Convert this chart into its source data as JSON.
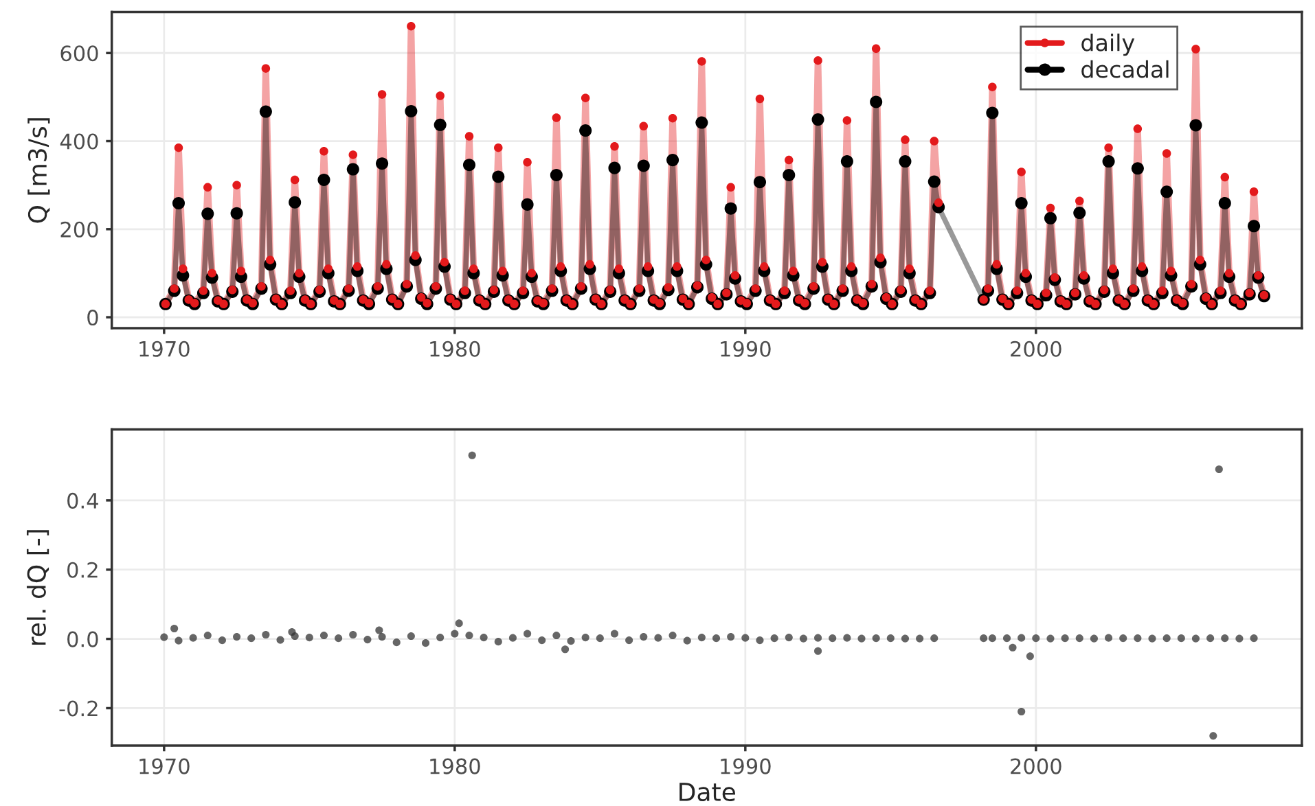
{
  "chart_data": [
    {
      "type": "line",
      "ylabel": "Q [m3/s]",
      "xlim": [
        1968.2,
        2009.15
      ],
      "xticks": [
        1970,
        1980,
        1990,
        2000
      ],
      "ylim": [
        -25,
        693
      ],
      "yticks": [
        0,
        200,
        400,
        600
      ],
      "grid": true,
      "legend": "top right",
      "marker": "circle",
      "series": [
        {
          "name": "daily",
          "color": "#e31a1c",
          "x": [
            1970.05,
            1970.35,
            1970.5,
            1970.65,
            1970.85,
            1971.05,
            1971.35,
            1971.5,
            1971.65,
            1971.85,
            1972.05,
            1972.35,
            1972.5,
            1972.65,
            1972.85,
            1973.05,
            1973.35,
            1973.5,
            1973.65,
            1973.85,
            1974.05,
            1974.35,
            1974.5,
            1974.65,
            1974.85,
            1975.05,
            1975.35,
            1975.5,
            1975.65,
            1975.85,
            1976.05,
            1976.35,
            1976.5,
            1976.65,
            1976.85,
            1977.05,
            1977.35,
            1977.5,
            1977.65,
            1977.85,
            1978.05,
            1978.35,
            1978.5,
            1978.65,
            1978.85,
            1979.05,
            1979.35,
            1979.5,
            1979.65,
            1979.85,
            1980.05,
            1980.35,
            1980.5,
            1980.65,
            1980.85,
            1981.05,
            1981.35,
            1981.5,
            1981.65,
            1981.85,
            1982.05,
            1982.35,
            1982.5,
            1982.65,
            1982.85,
            1983.05,
            1983.35,
            1983.5,
            1983.65,
            1983.85,
            1984.05,
            1984.35,
            1984.5,
            1984.65,
            1984.85,
            1985.05,
            1985.35,
            1985.5,
            1985.65,
            1985.85,
            1986.05,
            1986.35,
            1986.5,
            1986.65,
            1986.85,
            1987.05,
            1987.35,
            1987.5,
            1987.65,
            1987.85,
            1988.05,
            1988.35,
            1988.5,
            1988.65,
            1988.85,
            1989.05,
            1989.35,
            1989.5,
            1989.65,
            1989.85,
            1990.05,
            1990.35,
            1990.5,
            1990.65,
            1990.85,
            1991.05,
            1991.35,
            1991.5,
            1991.65,
            1991.85,
            1992.05,
            1992.35,
            1992.5,
            1992.65,
            1992.85,
            1993.05,
            1993.35,
            1993.5,
            1993.65,
            1993.85,
            1994.05,
            1994.35,
            1994.5,
            1994.65,
            1994.85,
            1995.05,
            1995.35,
            1995.5,
            1995.65,
            1995.85,
            1996.05,
            1996.35,
            1996.5,
            1996.65,
            1997.4,
            1998.2,
            1998.35,
            1998.5,
            1998.65,
            1998.85,
            1999.05,
            1999.35,
            1999.5,
            1999.65,
            1999.85,
            2000.05,
            2000.35,
            2000.5,
            2000.65,
            2000.85,
            2001.05,
            2001.35,
            2001.5,
            2001.65,
            2001.85,
            2002.05,
            2002.35,
            2002.5,
            2002.65,
            2002.85,
            2003.05,
            2003.35,
            2003.5,
            2003.65,
            2003.85,
            2004.05,
            2004.35,
            2004.5,
            2004.65,
            2004.85,
            2005.05,
            2005.35,
            2005.5,
            2005.65,
            2005.85,
            2006.05,
            2006.35,
            2006.5,
            2006.65,
            2006.85,
            2007.05,
            2007.35,
            2007.5,
            2007.65,
            2007.85
          ],
          "values": [
            30,
            65,
            385,
            110,
            40,
            32,
            60,
            295,
            100,
            38,
            30,
            62,
            300,
            105,
            40,
            32,
            70,
            565,
            130,
            42,
            30,
            60,
            312,
            100,
            40,
            30,
            62,
            377,
            110,
            38,
            30,
            65,
            369,
            115,
            40,
            32,
            70,
            506,
            120,
            42,
            30,
            75,
            661,
            140,
            45,
            32,
            70,
            503,
            125,
            42,
            30,
            60,
            411,
            110,
            40,
            30,
            62,
            385,
            105,
            40,
            30,
            60,
            352,
            100,
            38,
            32,
            65,
            453,
            115,
            40,
            30,
            70,
            498,
            120,
            42,
            30,
            62,
            388,
            110,
            40,
            30,
            65,
            434,
            115,
            40,
            32,
            68,
            452,
            115,
            42,
            30,
            72,
            581,
            130,
            45,
            30,
            55,
            295,
            95,
            38,
            32,
            65,
            496,
            115,
            40,
            30,
            60,
            357,
            105,
            40,
            32,
            70,
            583,
            125,
            42,
            30,
            65,
            447,
            115,
            40,
            32,
            75,
            610,
            135,
            45,
            30,
            62,
            403,
            110,
            40,
            30,
            60,
            400,
            260,
            null,
            40,
            65,
            523,
            120,
            42,
            30,
            60,
            330,
            100,
            40,
            30,
            55,
            248,
            90,
            38,
            30,
            55,
            264,
            95,
            38,
            30,
            62,
            385,
            110,
            40,
            30,
            65,
            428,
            115,
            40,
            30,
            60,
            372,
            105,
            40,
            32,
            75,
            609,
            130,
            45,
            30,
            60,
            318,
            100,
            40,
            30,
            55,
            285,
            95,
            50
          ]
        },
        {
          "name": "decadal",
          "color": "#000000",
          "x": [
            1970.05,
            1970.35,
            1970.5,
            1970.65,
            1970.85,
            1971.05,
            1971.35,
            1971.5,
            1971.65,
            1971.85,
            1972.05,
            1972.35,
            1972.5,
            1972.65,
            1972.85,
            1973.05,
            1973.35,
            1973.5,
            1973.65,
            1973.85,
            1974.05,
            1974.35,
            1974.5,
            1974.65,
            1974.85,
            1975.05,
            1975.35,
            1975.5,
            1975.65,
            1975.85,
            1976.05,
            1976.35,
            1976.5,
            1976.65,
            1976.85,
            1977.05,
            1977.35,
            1977.5,
            1977.65,
            1977.85,
            1978.05,
            1978.35,
            1978.5,
            1978.65,
            1978.85,
            1979.05,
            1979.35,
            1979.5,
            1979.65,
            1979.85,
            1980.05,
            1980.35,
            1980.5,
            1980.65,
            1980.85,
            1981.05,
            1981.35,
            1981.5,
            1981.65,
            1981.85,
            1982.05,
            1982.35,
            1982.5,
            1982.65,
            1982.85,
            1983.05,
            1983.35,
            1983.5,
            1983.65,
            1983.85,
            1984.05,
            1984.35,
            1984.5,
            1984.65,
            1984.85,
            1985.05,
            1985.35,
            1985.5,
            1985.65,
            1985.85,
            1986.05,
            1986.35,
            1986.5,
            1986.65,
            1986.85,
            1987.05,
            1987.35,
            1987.5,
            1987.65,
            1987.85,
            1988.05,
            1988.35,
            1988.5,
            1988.65,
            1988.85,
            1989.05,
            1989.35,
            1989.5,
            1989.65,
            1989.85,
            1990.05,
            1990.35,
            1990.5,
            1990.65,
            1990.85,
            1991.05,
            1991.35,
            1991.5,
            1991.65,
            1991.85,
            1992.05,
            1992.35,
            1992.5,
            1992.65,
            1992.85,
            1993.05,
            1993.35,
            1993.5,
            1993.65,
            1993.85,
            1994.05,
            1994.35,
            1994.5,
            1994.65,
            1994.85,
            1995.05,
            1995.35,
            1995.5,
            1995.65,
            1995.85,
            1996.05,
            1996.35,
            1996.5,
            1996.65,
            1998.2,
            1998.35,
            1998.5,
            1998.65,
            1998.85,
            1999.05,
            1999.35,
            1999.5,
            1999.65,
            1999.85,
            2000.05,
            2000.35,
            2000.5,
            2000.65,
            2000.85,
            2001.05,
            2001.35,
            2001.5,
            2001.65,
            2001.85,
            2002.05,
            2002.35,
            2002.5,
            2002.65,
            2002.85,
            2003.05,
            2003.35,
            2003.5,
            2003.65,
            2003.85,
            2004.05,
            2004.35,
            2004.5,
            2004.65,
            2004.85,
            2005.05,
            2005.35,
            2005.5,
            2005.65,
            2005.85,
            2006.05,
            2006.35,
            2006.5,
            2006.65,
            2006.85,
            2007.05,
            2007.35,
            2007.5,
            2007.65,
            2007.85
          ],
          "values": [
            30,
            60,
            259,
            95,
            38,
            30,
            55,
            235,
            90,
            36,
            30,
            58,
            236,
            92,
            38,
            30,
            65,
            467,
            120,
            40,
            30,
            55,
            261,
            92,
            38,
            30,
            58,
            312,
            100,
            36,
            30,
            60,
            336,
            105,
            38,
            30,
            65,
            349,
            110,
            40,
            30,
            70,
            468,
            130,
            42,
            30,
            65,
            437,
            115,
            40,
            30,
            55,
            346,
            100,
            38,
            30,
            58,
            319,
            95,
            38,
            30,
            55,
            256,
            92,
            36,
            30,
            60,
            323,
            105,
            38,
            30,
            65,
            424,
            110,
            40,
            30,
            58,
            339,
            100,
            38,
            30,
            60,
            344,
            105,
            38,
            30,
            62,
            357,
            105,
            40,
            30,
            68,
            442,
            120,
            42,
            30,
            52,
            247,
            88,
            36,
            30,
            60,
            307,
            105,
            38,
            30,
            55,
            323,
            95,
            38,
            30,
            65,
            449,
            115,
            40,
            30,
            60,
            354,
            105,
            38,
            30,
            70,
            489,
            125,
            42,
            30,
            58,
            354,
            100,
            38,
            30,
            55,
            308,
            250,
            40,
            60,
            464,
            110,
            40,
            30,
            55,
            259,
            92,
            38,
            30,
            50,
            225,
            85,
            36,
            30,
            52,
            237,
            88,
            36,
            30,
            58,
            354,
            100,
            38,
            30,
            60,
            338,
            105,
            38,
            30,
            55,
            285,
            95,
            38,
            30,
            70,
            436,
            120,
            42,
            30,
            55,
            259,
            92,
            38,
            30,
            52,
            207,
            90,
            48
          ]
        }
      ]
    },
    {
      "type": "scatter",
      "xlabel": "Date",
      "ylabel": "rel. dQ [-]",
      "xlim": [
        1968.2,
        2009.15
      ],
      "xticks": [
        1970,
        1980,
        1990,
        2000
      ],
      "ylim": [
        -0.308,
        0.605
      ],
      "yticks": [
        {
          "value": -0.2,
          "label": "-0.2"
        },
        {
          "value": 0,
          "label": "0.0"
        },
        0.2,
        0.4
      ],
      "grid": true,
      "marker": "circle",
      "series": [
        {
          "color": "#333333",
          "x": [
            1970.0,
            1970.5,
            1971.0,
            1971.5,
            1972.0,
            1972.5,
            1973.0,
            1973.5,
            1974.0,
            1974.5,
            1975.0,
            1975.5,
            1976.0,
            1976.5,
            1977.0,
            1977.5,
            1978.0,
            1978.5,
            1979.0,
            1979.5,
            1980.0,
            1980.5,
            1981.0,
            1981.5,
            1982.0,
            1982.5,
            1983.0,
            1983.5,
            1984.0,
            1984.5,
            1985.0,
            1985.5,
            1986.0,
            1986.5,
            1987.0,
            1987.5,
            1988.0,
            1988.5,
            1989.0,
            1989.5,
            1990.0,
            1990.5,
            1991.0,
            1991.5,
            1992.0,
            1992.5,
            1993.0,
            1993.5,
            1994.0,
            1994.5,
            1995.0,
            1995.5,
            1996.0,
            1996.5,
            1998.2,
            1998.5,
            1999.0,
            1999.5,
            2000.0,
            2000.5,
            2001.0,
            2001.5,
            2002.0,
            2002.5,
            2003.0,
            2003.5,
            2004.0,
            2004.5,
            2005.0,
            2005.5,
            2006.0,
            2006.5,
            2007.0,
            2007.5,
            1970.35,
            1974.4,
            1977.4,
            1980.15,
            1980.6,
            1983.8,
            1992.5,
            1999.2,
            1999.5,
            1999.8,
            2006.1,
            2006.3
          ],
          "values": [
            0.005,
            -0.005,
            0.003,
            0.01,
            -0.004,
            0.006,
            0.002,
            0.012,
            -0.003,
            0.008,
            0.004,
            0.01,
            0.002,
            0.012,
            -0.002,
            0.006,
            -0.01,
            0.008,
            -0.012,
            0.004,
            0.015,
            0.01,
            0.004,
            -0.008,
            0.003,
            0.015,
            -0.004,
            0.01,
            -0.006,
            0.004,
            0.002,
            0.015,
            -0.004,
            0.006,
            0.003,
            0.01,
            -0.005,
            0.004,
            0.002,
            0.006,
            0.003,
            -0.004,
            0.002,
            0.004,
            0.001,
            0.003,
            0.002,
            0.003,
            0.001,
            0.002,
            0.002,
            0.001,
            0.001,
            0.002,
            0.002,
            0.002,
            0.002,
            0.003,
            0.002,
            0.001,
            0.002,
            0.002,
            0.001,
            0.003,
            0.002,
            0.002,
            0.001,
            0.002,
            0.002,
            0.001,
            0.002,
            0.002,
            0.001,
            0.002,
            0.03,
            0.02,
            0.025,
            0.045,
            0.53,
            -0.03,
            -0.035,
            -0.025,
            -0.21,
            -0.05,
            -0.28,
            0.49
          ]
        }
      ]
    }
  ]
}
